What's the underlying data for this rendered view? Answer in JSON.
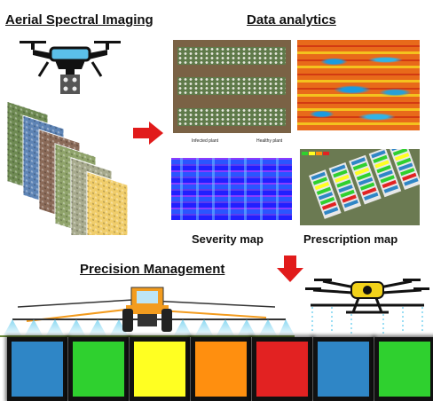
{
  "sections": {
    "aerial_title": "Aerial Spectral Imaging",
    "analytics_title": "Data analytics",
    "management_title": "Precision Management"
  },
  "maps": {
    "infected_label": "Infected plant",
    "healthy_label": "Healthy plant",
    "severity_label": "Severity map",
    "prescription_label": "Prescription map"
  },
  "icons": [
    "drone-icon",
    "spectral-layers-icon",
    "arrow-right-icon",
    "arrow-down-icon",
    "tractor-sprayer-icon",
    "spray-drone-icon"
  ],
  "management_swatches": [
    "#2f86c6",
    "#2fd02f",
    "#ffff22",
    "#ff8f0f",
    "#e22222",
    "#2f86c6",
    "#2fd02f"
  ],
  "accent_colors": {
    "arrow": "#e11b1b",
    "drone": "#5bc0ea",
    "tractor": "#f39c1f",
    "spray": "#7ad3f0"
  }
}
